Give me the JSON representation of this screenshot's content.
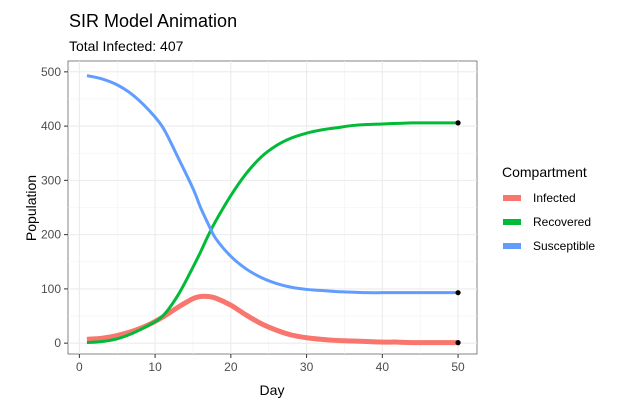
{
  "chart_data": {
    "type": "line",
    "title": "SIR Model Animation",
    "subtitle": "Total Infected: 407",
    "xlabel": "Day",
    "ylabel": "Population",
    "xlim": [
      -1.5,
      52.5
    ],
    "ylim": [
      -20,
      520
    ],
    "x_ticks": [
      0,
      10,
      20,
      30,
      40,
      50
    ],
    "y_ticks": [
      0,
      100,
      200,
      300,
      400,
      500
    ],
    "grid": true,
    "legend": {
      "title": "Compartment",
      "placement": "right"
    },
    "x": [
      1,
      3,
      5,
      7,
      9,
      11,
      13,
      15,
      16,
      17,
      18,
      20,
      22,
      24,
      26,
      28,
      30,
      32,
      34,
      36,
      38,
      40,
      42,
      44,
      46,
      48,
      50
    ],
    "series": [
      {
        "name": "Infected",
        "color": "#F8766D",
        "values": [
          7,
          9,
          14,
          22,
          33,
          48,
          66,
          82,
          86,
          86,
          83,
          70,
          52,
          36,
          24,
          15,
          10,
          7,
          5,
          4,
          3,
          2,
          2,
          1,
          1,
          1,
          1
        ]
      },
      {
        "name": "Recovered",
        "color": "#00BA38",
        "values": [
          1,
          3,
          8,
          18,
          32,
          50,
          88,
          140,
          168,
          198,
          225,
          272,
          312,
          343,
          364,
          378,
          387,
          393,
          397,
          401,
          403,
          404,
          405,
          406,
          406,
          406,
          406
        ]
      },
      {
        "name": "Susceptible",
        "color": "#619CFF",
        "values": [
          493,
          487,
          476,
          458,
          432,
          398,
          343,
          285,
          250,
          220,
          193,
          160,
          137,
          121,
          110,
          103,
          99,
          97,
          95,
          94,
          93,
          93,
          93,
          93,
          93,
          93,
          93
        ]
      }
    ],
    "end_markers": [
      {
        "x": 50,
        "y": 406
      },
      {
        "x": 50,
        "y": 93
      },
      {
        "x": 50,
        "y": 1
      }
    ]
  }
}
